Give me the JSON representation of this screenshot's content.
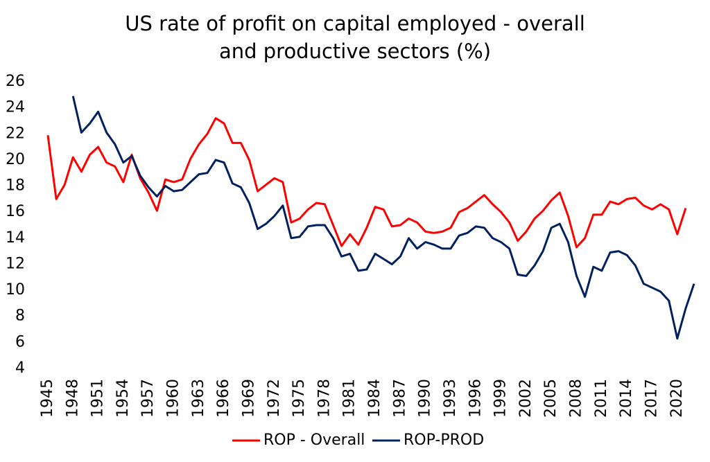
{
  "chart_data": {
    "type": "line",
    "title": "US rate of profit on capital employed - overall and productive sectors (%)",
    "x": [
      1945,
      1946,
      1947,
      1948,
      1949,
      1950,
      1951,
      1952,
      1953,
      1954,
      1955,
      1956,
      1957,
      1958,
      1959,
      1960,
      1961,
      1962,
      1963,
      1964,
      1965,
      1966,
      1967,
      1968,
      1969,
      1970,
      1971,
      1972,
      1973,
      1974,
      1975,
      1976,
      1977,
      1978,
      1979,
      1980,
      1981,
      1982,
      1983,
      1984,
      1985,
      1986,
      1987,
      1988,
      1989,
      1990,
      1991,
      1992,
      1993,
      1994,
      1995,
      1996,
      1997,
      1998,
      1999,
      2000,
      2001,
      2002,
      2003,
      2004,
      2005,
      2006,
      2007,
      2008,
      2009,
      2010,
      2011,
      2012,
      2013,
      2014,
      2015,
      2016,
      2017,
      2018,
      2019,
      2020,
      2021,
      2022
    ],
    "series": [
      {
        "name": "ROP - Overall",
        "color": "#ff0000",
        "values": [
          21.9,
          17.0,
          18.1,
          20.2,
          19.1,
          20.4,
          21.0,
          19.8,
          19.5,
          18.3,
          20.4,
          18.6,
          17.5,
          16.1,
          18.5,
          18.3,
          18.5,
          20.1,
          21.2,
          22.0,
          23.2,
          22.8,
          21.3,
          21.3,
          20.0,
          17.6,
          18.1,
          18.6,
          18.3,
          15.2,
          15.5,
          16.2,
          16.7,
          16.6,
          15.0,
          13.4,
          14.3,
          13.5,
          14.8,
          16.4,
          16.2,
          14.9,
          15.0,
          15.5,
          15.2,
          14.5,
          14.4,
          14.5,
          14.8,
          16.0,
          16.3,
          16.8,
          17.3,
          16.6,
          16.0,
          15.2,
          13.8,
          14.5,
          15.5,
          16.1,
          16.9,
          17.5,
          15.7,
          13.3,
          14.0,
          15.8,
          15.8,
          16.8,
          16.6,
          17.0,
          17.1,
          16.5,
          16.2,
          16.6,
          16.2,
          14.3,
          16.3,
          null
        ]
      },
      {
        "name": "ROP-PROD",
        "color": "#002060",
        "values": [
          null,
          null,
          null,
          24.9,
          22.1,
          22.8,
          23.7,
          22.1,
          21.2,
          19.8,
          20.3,
          18.8,
          17.9,
          17.2,
          18.0,
          17.6,
          17.7,
          18.3,
          18.9,
          19.0,
          20.0,
          19.8,
          18.2,
          17.9,
          16.7,
          14.7,
          15.1,
          15.7,
          16.5,
          14.0,
          14.1,
          14.9,
          15.0,
          15.0,
          14.0,
          12.6,
          12.8,
          11.5,
          11.6,
          12.8,
          12.4,
          12.0,
          12.6,
          14.0,
          13.2,
          13.7,
          13.5,
          13.2,
          13.2,
          14.2,
          14.4,
          14.9,
          14.8,
          14.0,
          13.7,
          13.2,
          11.2,
          11.1,
          11.9,
          13.0,
          14.8,
          15.1,
          13.7,
          11.1,
          9.5,
          11.8,
          11.5,
          12.9,
          13.0,
          12.7,
          11.9,
          10.5,
          10.2,
          9.9,
          9.2,
          6.3,
          8.6,
          10.5
        ]
      }
    ],
    "xlim": [
      1945,
      2022
    ],
    "xticks": [
      1945,
      1948,
      1951,
      1954,
      1957,
      1960,
      1963,
      1966,
      1969,
      1972,
      1975,
      1978,
      1981,
      1984,
      1987,
      1990,
      1993,
      1996,
      1999,
      2002,
      2005,
      2008,
      2011,
      2014,
      2017,
      2020
    ],
    "ylim": [
      4,
      26
    ],
    "yticks": [
      4,
      6,
      8,
      10,
      12,
      14,
      16,
      18,
      20,
      22,
      24,
      26
    ],
    "grid": false,
    "legend": "bottom"
  }
}
